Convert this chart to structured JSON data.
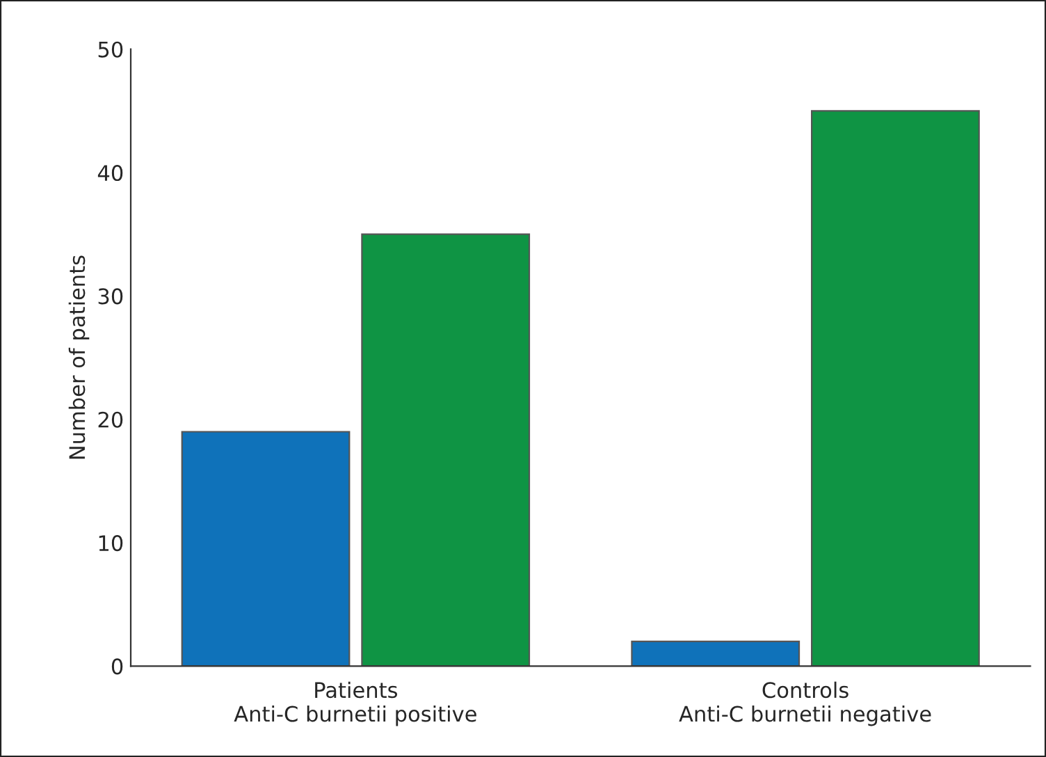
{
  "chart_data": {
    "type": "bar",
    "ylabel": "Number of patients",
    "categories": [
      "Patients\nAnti-C burnetii positive",
      "Controls\nAnti-C burnetii negative"
    ],
    "series": [
      {
        "color": "#0f72ba",
        "values": [
          19,
          2
        ]
      },
      {
        "color": "#0f9444",
        "values": [
          35,
          45
        ]
      }
    ],
    "ylim": [
      0,
      50
    ],
    "yticks": [
      0,
      10,
      20,
      30,
      40,
      50
    ],
    "grid": false,
    "legend": false
  }
}
